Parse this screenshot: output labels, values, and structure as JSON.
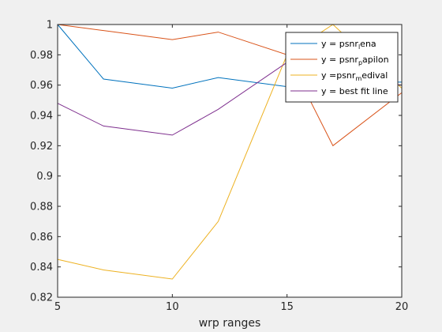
{
  "chart_data": {
    "type": "line",
    "x": [
      5,
      7,
      10,
      12,
      15,
      17,
      20
    ],
    "xlabel": "wrp ranges",
    "ylabel": "",
    "xlim": [
      5,
      20
    ],
    "ylim": [
      0.82,
      1.0
    ],
    "xticks": [
      "5",
      "10",
      "15",
      "20"
    ],
    "yticks": [
      "0.82",
      "0.84",
      "0.86",
      "0.88",
      "0.9",
      "0.92",
      "0.94",
      "0.96",
      "0.98",
      "1"
    ],
    "legend_position": "top-right",
    "grid": false,
    "series": [
      {
        "name": "y = psnr_lena",
        "legend_parts": {
          "pre": "y = psnr",
          "sub": "l",
          "post": "ena"
        },
        "color": "#0072BD",
        "values": [
          1.0,
          0.964,
          0.958,
          0.965,
          0.959,
          0.962,
          0.962
        ]
      },
      {
        "name": "y = psnr_papilon",
        "legend_parts": {
          "pre": "y = psnr",
          "sub": "p",
          "post": "apilon"
        },
        "color": "#D95319",
        "values": [
          1.0,
          0.996,
          0.99,
          0.995,
          0.98,
          0.92,
          0.955
        ]
      },
      {
        "name": "y =psnr_medival",
        "legend_parts": {
          "pre": "y =psnr",
          "sub": "m",
          "post": "edival"
        },
        "color": "#EDB120",
        "values": [
          0.845,
          0.838,
          0.832,
          0.87,
          0.98,
          1.0,
          0.958
        ]
      },
      {
        "name": "y = best fit line",
        "legend_parts": {
          "pre": "y = best fit line",
          "sub": "",
          "post": ""
        },
        "color": "#7E2F8E",
        "values": [
          0.948,
          0.933,
          0.927,
          0.944,
          0.975,
          0.965,
          0.96
        ]
      }
    ]
  }
}
